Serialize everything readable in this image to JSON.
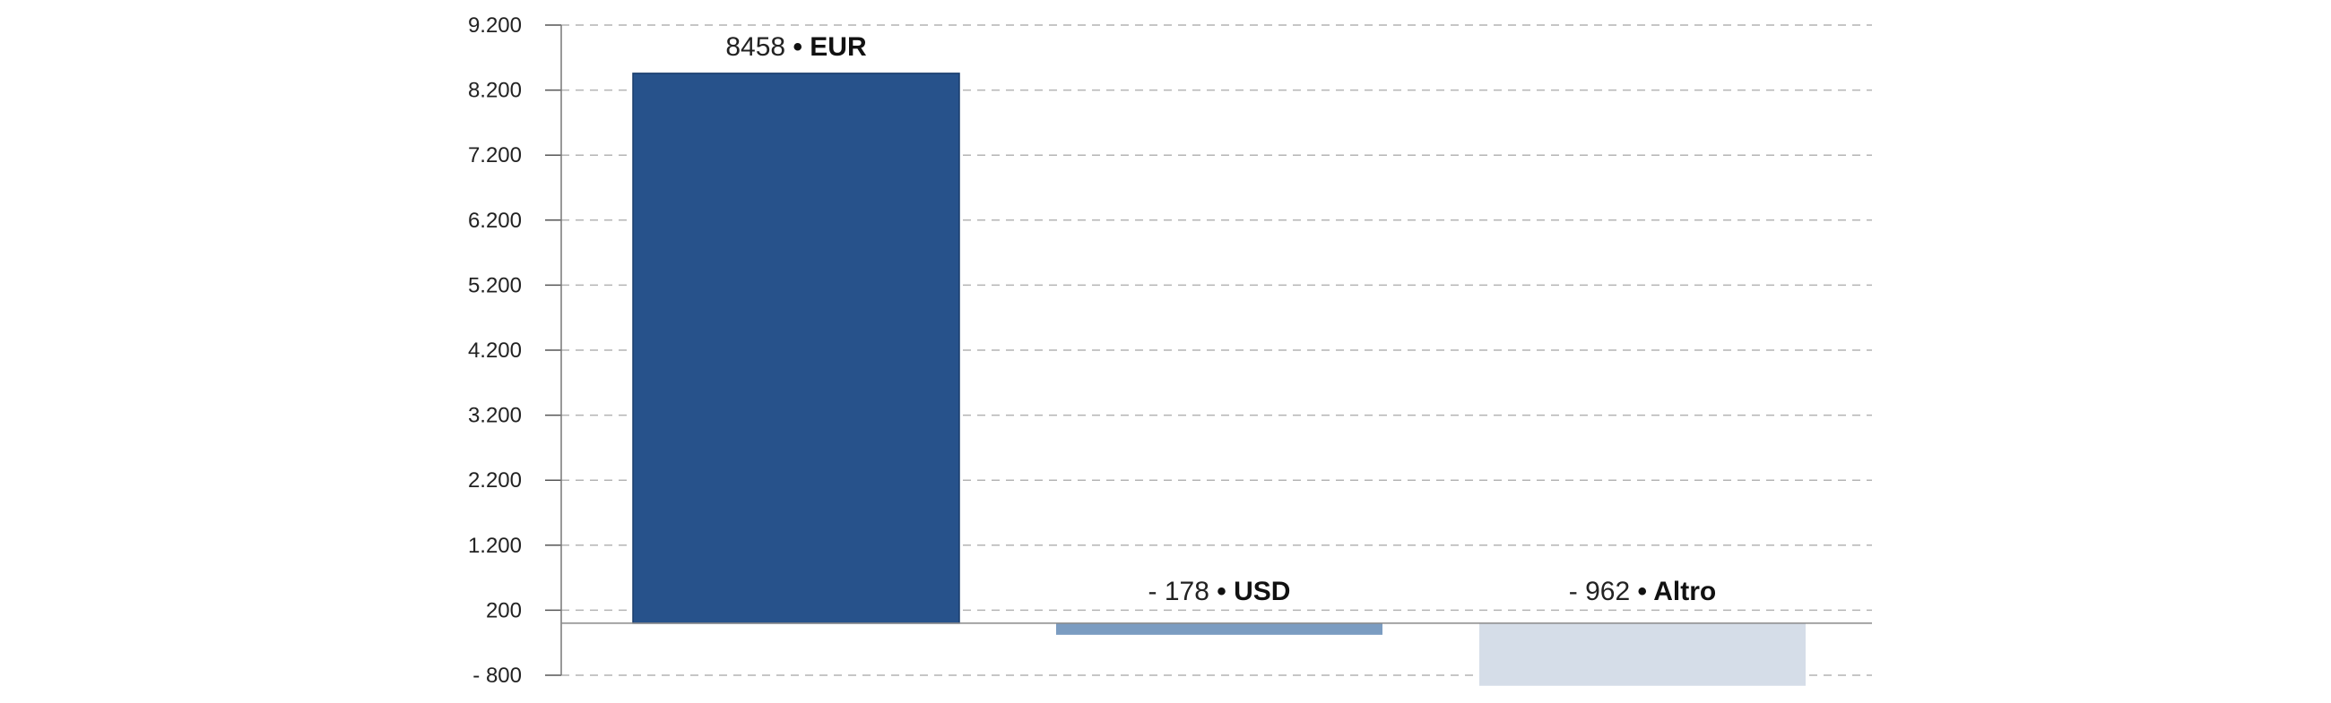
{
  "chart_data": {
    "type": "bar",
    "categories": [
      "EUR",
      "USD",
      "Altro"
    ],
    "values": [
      8458,
      -178,
      -962
    ],
    "value_labels": [
      "8458",
      "- 178",
      "- 962"
    ],
    "separator": "•",
    "colors": [
      "#27528b",
      "#7b9cc1",
      "#d5dde8"
    ],
    "ylim": [
      -800,
      9200
    ],
    "yticks": [
      9200,
      8200,
      7200,
      6200,
      5200,
      4200,
      3200,
      2200,
      1200,
      200,
      -800
    ],
    "ytick_labels": [
      "9.200",
      "8.200",
      "7.200",
      "6.200",
      "5.200",
      "4.200",
      "3.200",
      "2.200",
      "1.200",
      "200",
      "- 800"
    ],
    "grid": true,
    "title": "",
    "xlabel": "",
    "ylabel": ""
  }
}
